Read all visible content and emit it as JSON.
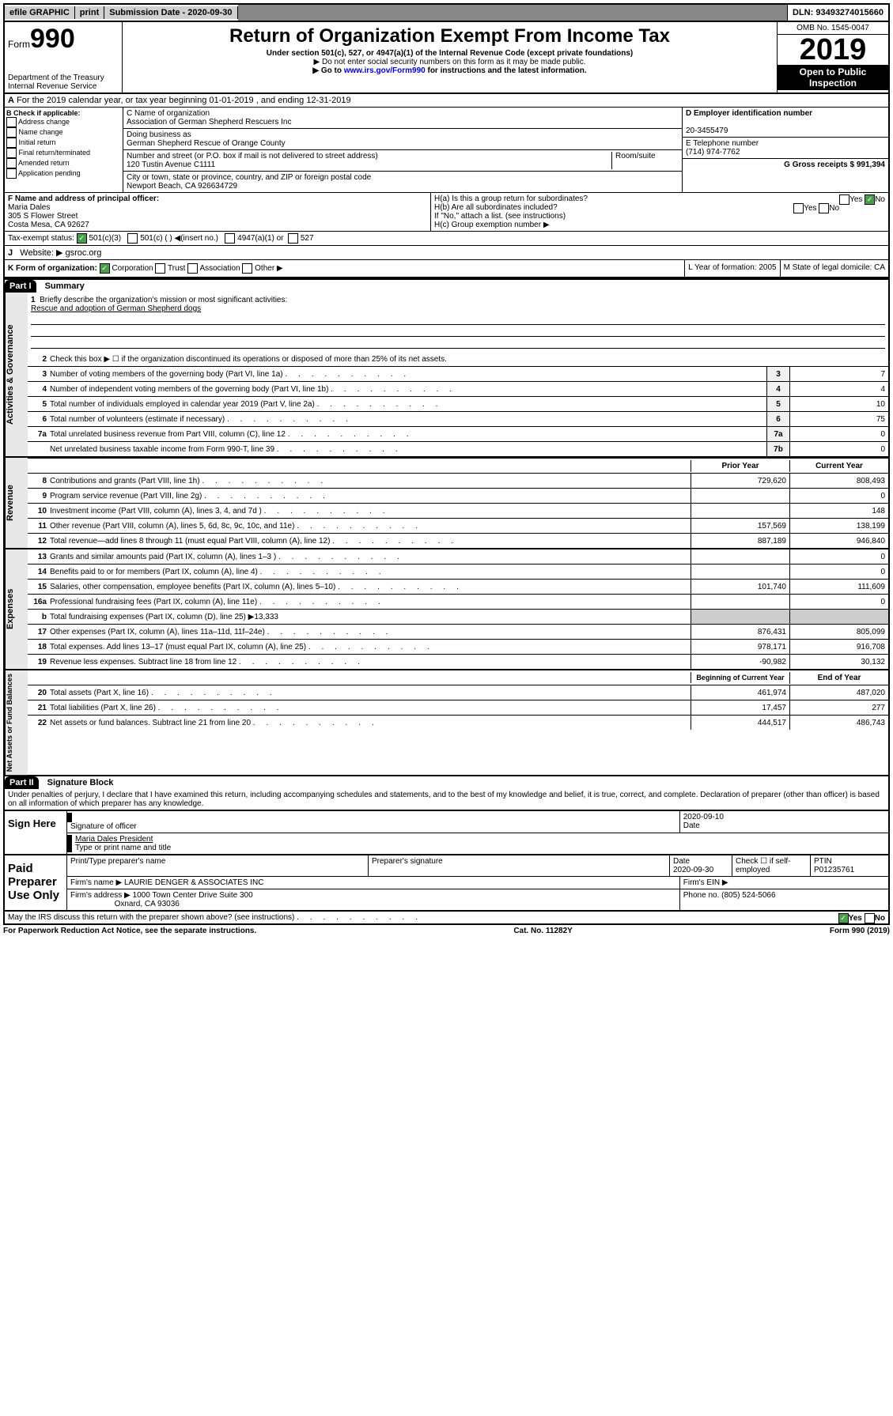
{
  "topbar": {
    "efile": "efile GRAPHIC",
    "print": "print",
    "submission": "Submission Date - 2020-09-30",
    "dln": "DLN: 93493274015660"
  },
  "header": {
    "form": "Form",
    "formnum": "990",
    "dept": "Department of the Treasury",
    "irs": "Internal Revenue Service",
    "title": "Return of Organization Exempt From Income Tax",
    "sub1": "Under section 501(c), 527, or 4947(a)(1) of the Internal Revenue Code (except private foundations)",
    "sub2": "▶ Do not enter social security numbers on this form as it may be made public.",
    "sub3_pre": "▶ Go to ",
    "sub3_link": "www.irs.gov/Form990",
    "sub3_post": " for instructions and the latest information.",
    "omb": "OMB No. 1545-0047",
    "year": "2019",
    "inspect1": "Open to Public",
    "inspect2": "Inspection"
  },
  "rowA": {
    "label": "A",
    "text": "For the 2019 calendar year, or tax year beginning 01-01-2019    , and ending 12-31-2019"
  },
  "sectionB": {
    "label": "B Check if applicable:",
    "opts": [
      "Address change",
      "Name change",
      "Initial return",
      "Final return/terminated",
      "Amended return",
      "Application pending"
    ]
  },
  "sectionC": {
    "label": "C Name of organization",
    "name": "Association of German Shepherd Rescuers Inc",
    "dba_label": "Doing business as",
    "dba": "German Shepherd Rescue of Orange County",
    "addr_label": "Number and street (or P.O. box if mail is not delivered to street address)",
    "room_label": "Room/suite",
    "addr": "120 Tustin Avenue C1111",
    "city_label": "City or town, state or province, country, and ZIP or foreign postal code",
    "city": "Newport Beach, CA  926634729"
  },
  "sectionD": {
    "label": "D Employer identification number",
    "ein": "20-3455479",
    "e_label": "E Telephone number",
    "phone": "(714) 974-7762",
    "g_label": "G Gross receipts $ 991,394"
  },
  "sectionF": {
    "label": "F  Name and address of principal officer:",
    "name": "Maria Dales",
    "addr1": "305 S Flower Street",
    "addr2": "Costa Mesa, CA  92627"
  },
  "sectionH": {
    "ha": "H(a)  Is this a group return for subordinates?",
    "hb": "H(b)  Are all subordinates included?",
    "hb_note": "If \"No,\" attach a list. (see instructions)",
    "hc": "H(c)  Group exemption number ▶",
    "yes": "Yes",
    "no": "No"
  },
  "sectionI": {
    "label": "Tax-exempt status:",
    "opt1": "501(c)(3)",
    "opt2": "501(c) (  ) ◀(insert no.)",
    "opt3": "4947(a)(1) or",
    "opt4": "527"
  },
  "sectionJ": {
    "label": "J",
    "text": "Website: ▶  gsroc.org"
  },
  "sectionK": {
    "label": "K Form of organization:",
    "corp": "Corporation",
    "trust": "Trust",
    "assoc": "Association",
    "other": "Other ▶",
    "l": "L Year of formation: 2005",
    "m": "M State of legal domicile: CA"
  },
  "part1": {
    "header": "Part I",
    "title": "Summary",
    "q1": "Briefly describe the organization's mission or most significant activities:",
    "q1_ans": "Rescue and adoption of German Shepherd dogs",
    "q2": "Check this box ▶ ☐  if the organization discontinued its operations or disposed of more than 25% of its net assets."
  },
  "sides": {
    "gov": "Activities & Governance",
    "rev": "Revenue",
    "exp": "Expenses",
    "net": "Net Assets or Fund Balances"
  },
  "govlines": [
    {
      "n": "3",
      "d": "Number of voting members of the governing body (Part VI, line 1a)",
      "b": "3",
      "v": "7"
    },
    {
      "n": "4",
      "d": "Number of independent voting members of the governing body (Part VI, line 1b)",
      "b": "4",
      "v": "4"
    },
    {
      "n": "5",
      "d": "Total number of individuals employed in calendar year 2019 (Part V, line 2a)",
      "b": "5",
      "v": "10"
    },
    {
      "n": "6",
      "d": "Total number of volunteers (estimate if necessary)",
      "b": "6",
      "v": "75"
    },
    {
      "n": "7a",
      "d": "Total unrelated business revenue from Part VIII, column (C), line 12",
      "b": "7a",
      "v": "0"
    },
    {
      "n": "",
      "d": "Net unrelated business taxable income from Form 990-T, line 39",
      "b": "7b",
      "v": "0"
    }
  ],
  "colheaders": {
    "prior": "Prior Year",
    "current": "Current Year",
    "boy": "Beginning of Current Year",
    "eoy": "End of Year"
  },
  "revlines": [
    {
      "n": "8",
      "d": "Contributions and grants (Part VIII, line 1h)",
      "p": "729,620",
      "c": "808,493"
    },
    {
      "n": "9",
      "d": "Program service revenue (Part VIII, line 2g)",
      "p": "",
      "c": "0"
    },
    {
      "n": "10",
      "d": "Investment income (Part VIII, column (A), lines 3, 4, and 7d )",
      "p": "",
      "c": "148"
    },
    {
      "n": "11",
      "d": "Other revenue (Part VIII, column (A), lines 5, 6d, 8c, 9c, 10c, and 11e)",
      "p": "157,569",
      "c": "138,199"
    },
    {
      "n": "12",
      "d": "Total revenue—add lines 8 through 11 (must equal Part VIII, column (A), line 12)",
      "p": "887,189",
      "c": "946,840"
    }
  ],
  "explines": [
    {
      "n": "13",
      "d": "Grants and similar amounts paid (Part IX, column (A), lines 1–3 )",
      "p": "",
      "c": "0"
    },
    {
      "n": "14",
      "d": "Benefits paid to or for members (Part IX, column (A), line 4)",
      "p": "",
      "c": "0"
    },
    {
      "n": "15",
      "d": "Salaries, other compensation, employee benefits (Part IX, column (A), lines 5–10)",
      "p": "101,740",
      "c": "111,609"
    },
    {
      "n": "16a",
      "d": "Professional fundraising fees (Part IX, column (A), line 11e)",
      "p": "",
      "c": "0"
    },
    {
      "n": "b",
      "d": "Total fundraising expenses (Part IX, column (D), line 25) ▶13,333",
      "p": "—",
      "c": "—"
    },
    {
      "n": "17",
      "d": "Other expenses (Part IX, column (A), lines 11a–11d, 11f–24e)",
      "p": "876,431",
      "c": "805,099"
    },
    {
      "n": "18",
      "d": "Total expenses. Add lines 13–17 (must equal Part IX, column (A), line 25)",
      "p": "978,171",
      "c": "916,708"
    },
    {
      "n": "19",
      "d": "Revenue less expenses. Subtract line 18 from line 12",
      "p": "-90,982",
      "c": "30,132"
    }
  ],
  "netlines": [
    {
      "n": "20",
      "d": "Total assets (Part X, line 16)",
      "p": "461,974",
      "c": "487,020"
    },
    {
      "n": "21",
      "d": "Total liabilities (Part X, line 26)",
      "p": "17,457",
      "c": "277"
    },
    {
      "n": "22",
      "d": "Net assets or fund balances. Subtract line 21 from line 20",
      "p": "444,517",
      "c": "486,743"
    }
  ],
  "part2": {
    "header": "Part II",
    "title": "Signature Block",
    "perjury": "Under penalties of perjury, I declare that I have examined this return, including accompanying schedules and statements, and to the best of my knowledge and belief, it is true, correct, and complete. Declaration of preparer (other than officer) is based on all information of which preparer has any knowledge."
  },
  "sign": {
    "here": "Sign Here",
    "sig_label": "Signature of officer",
    "date": "2020-09-10",
    "date_label": "Date",
    "name": "Maria Dales  President",
    "name_label": "Type or print name and title"
  },
  "paid": {
    "label": "Paid Preparer Use Only",
    "h1": "Print/Type preparer's name",
    "h2": "Preparer's signature",
    "h3": "Date",
    "date": "2020-09-30",
    "h4": "Check ☐ if self-employed",
    "h5": "PTIN",
    "ptin": "P01235761",
    "firm_l": "Firm's name    ▶",
    "firm": "LAURIE DENGER & ASSOCIATES INC",
    "ein_l": "Firm's EIN ▶",
    "addr_l": "Firm's address ▶",
    "addr1": "1000 Town Center Drive Suite 300",
    "addr2": "Oxnard, CA  93036",
    "phone_l": "Phone no. (805) 524-5066"
  },
  "discuss": "May the IRS discuss this return with the preparer shown above? (see instructions)",
  "footer": {
    "pra": "For Paperwork Reduction Act Notice, see the separate instructions.",
    "cat": "Cat. No. 11282Y",
    "form": "Form 990 (2019)"
  }
}
